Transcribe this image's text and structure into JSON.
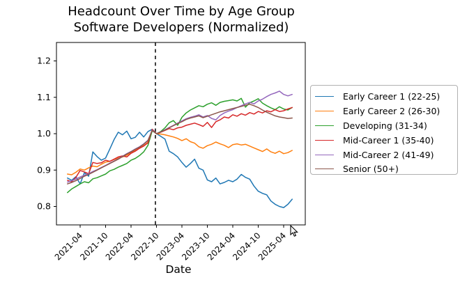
{
  "chart_data": {
    "type": "line",
    "title": "Headcount Over Time by Age Group",
    "subtitle": "Software Developers (Normalized)",
    "xlabel": "Date",
    "ylabel": "",
    "grid": false,
    "legend_position": "outside-right",
    "ylim": [
      0.75,
      1.25
    ],
    "y_tick_labels": [
      "0.8",
      "0.9",
      "1.0",
      "1.1",
      "1.2"
    ],
    "y_ticks": [
      0.8,
      0.9,
      1.0,
      1.1,
      1.2
    ],
    "x_tick_labels": [
      "2021-04",
      "2021-10",
      "2022-04",
      "2022-10",
      "2023-04",
      "2023-10",
      "2024-04",
      "2024-10",
      "2025-04"
    ],
    "x": [
      "2021-01",
      "2021-02",
      "2021-03",
      "2021-04",
      "2021-05",
      "2021-06",
      "2021-07",
      "2021-08",
      "2021-09",
      "2021-10",
      "2021-11",
      "2021-12",
      "2022-01",
      "2022-02",
      "2022-03",
      "2022-04",
      "2022-05",
      "2022-06",
      "2022-07",
      "2022-08",
      "2022-09",
      "2022-10",
      "2022-11",
      "2022-12",
      "2023-01",
      "2023-02",
      "2023-03",
      "2023-04",
      "2023-05",
      "2023-06",
      "2023-07",
      "2023-08",
      "2023-09",
      "2023-10",
      "2023-11",
      "2023-12",
      "2024-01",
      "2024-02",
      "2024-03",
      "2024-04",
      "2024-05",
      "2024-06",
      "2024-07",
      "2024-08",
      "2024-09",
      "2024-10",
      "2024-11",
      "2024-12",
      "2025-01",
      "2025-02",
      "2025-03",
      "2025-04",
      "2025-05",
      "2025-06"
    ],
    "event_line": {
      "at": "2022-09",
      "style": "dashed",
      "color": "#000000"
    },
    "series": [
      {
        "name": "Early Career 1 (22-25)",
        "color": "#1f77b4",
        "values": [
          0.878,
          0.872,
          0.882,
          0.862,
          0.893,
          0.883,
          0.95,
          0.937,
          0.927,
          0.933,
          0.958,
          0.984,
          1.004,
          0.997,
          1.007,
          0.986,
          0.99,
          1.004,
          0.991,
          1.006,
          1.012,
          1.0,
          0.993,
          0.985,
          0.952,
          0.945,
          0.936,
          0.921,
          0.908,
          0.918,
          0.93,
          0.905,
          0.9,
          0.873,
          0.868,
          0.878,
          0.862,
          0.866,
          0.872,
          0.868,
          0.875,
          0.888,
          0.88,
          0.875,
          0.856,
          0.842,
          0.836,
          0.832,
          0.815,
          0.806,
          0.8,
          0.797,
          0.806,
          0.82
        ]
      },
      {
        "name": "Early Career 2 (26-30)",
        "color": "#ff7f0e",
        "values": [
          0.889,
          0.887,
          0.894,
          0.903,
          0.9,
          0.906,
          0.911,
          0.909,
          0.916,
          0.922,
          0.924,
          0.929,
          0.933,
          0.936,
          0.941,
          0.948,
          0.954,
          0.96,
          0.967,
          0.976,
          1.01,
          1.0,
          0.999,
          0.997,
          0.994,
          0.991,
          0.987,
          0.981,
          0.986,
          0.978,
          0.974,
          0.964,
          0.96,
          0.967,
          0.971,
          0.977,
          0.972,
          0.968,
          0.962,
          0.97,
          0.972,
          0.969,
          0.971,
          0.966,
          0.961,
          0.956,
          0.951,
          0.958,
          0.95,
          0.946,
          0.952,
          0.945,
          0.948,
          0.954
        ]
      },
      {
        "name": "Developing (31-34)",
        "color": "#2ca02c",
        "values": [
          0.838,
          0.848,
          0.855,
          0.862,
          0.868,
          0.865,
          0.876,
          0.879,
          0.884,
          0.889,
          0.898,
          0.902,
          0.908,
          0.913,
          0.918,
          0.927,
          0.932,
          0.94,
          0.95,
          0.968,
          1.008,
          1.0,
          1.006,
          1.016,
          1.03,
          1.036,
          1.023,
          1.045,
          1.057,
          1.065,
          1.071,
          1.077,
          1.074,
          1.081,
          1.085,
          1.078,
          1.086,
          1.089,
          1.091,
          1.093,
          1.09,
          1.097,
          1.073,
          1.085,
          1.09,
          1.096,
          1.084,
          1.077,
          1.071,
          1.066,
          1.074,
          1.068,
          1.065,
          1.072
        ]
      },
      {
        "name": "Mid-Career 1 (35-40)",
        "color": "#d62728",
        "values": [
          0.872,
          0.868,
          0.88,
          0.899,
          0.895,
          0.89,
          0.921,
          0.918,
          0.92,
          0.927,
          0.924,
          0.93,
          0.936,
          0.939,
          0.936,
          0.946,
          0.952,
          0.96,
          0.966,
          0.975,
          1.012,
          1.0,
          1.004,
          1.009,
          1.014,
          1.011,
          1.016,
          1.018,
          1.023,
          1.026,
          1.029,
          1.025,
          1.02,
          1.031,
          1.017,
          1.033,
          1.038,
          1.046,
          1.043,
          1.052,
          1.048,
          1.055,
          1.051,
          1.058,
          1.054,
          1.061,
          1.057,
          1.063,
          1.06,
          1.066,
          1.061,
          1.063,
          1.068,
          1.072
        ]
      },
      {
        "name": "Mid-Career 2 (41-49)",
        "color": "#9467bd",
        "values": [
          0.867,
          0.871,
          0.875,
          0.881,
          0.886,
          0.89,
          0.896,
          0.901,
          0.907,
          0.913,
          0.919,
          0.925,
          0.931,
          0.938,
          0.945,
          0.951,
          0.958,
          0.964,
          0.972,
          0.982,
          1.01,
          1.0,
          1.005,
          1.011,
          1.017,
          1.023,
          1.029,
          1.035,
          1.041,
          1.045,
          1.048,
          1.052,
          1.046,
          1.05,
          1.042,
          1.038,
          1.05,
          1.057,
          1.062,
          1.066,
          1.072,
          1.077,
          1.082,
          1.086,
          1.082,
          1.09,
          1.095,
          1.102,
          1.108,
          1.112,
          1.117,
          1.108,
          1.104,
          1.108
        ]
      },
      {
        "name": "Senior (50+)",
        "color": "#8c564b",
        "values": [
          0.862,
          0.866,
          0.871,
          0.877,
          0.883,
          0.888,
          0.894,
          0.9,
          0.906,
          0.912,
          0.918,
          0.924,
          0.93,
          0.937,
          0.944,
          0.95,
          0.957,
          0.963,
          0.971,
          0.981,
          1.009,
          1.0,
          1.005,
          1.01,
          1.016,
          1.022,
          1.028,
          1.033,
          1.039,
          1.043,
          1.046,
          1.049,
          1.044,
          1.048,
          1.052,
          1.056,
          1.06,
          1.063,
          1.066,
          1.069,
          1.072,
          1.075,
          1.078,
          1.081,
          1.077,
          1.072,
          1.065,
          1.059,
          1.054,
          1.049,
          1.046,
          1.044,
          1.042,
          1.043
        ]
      }
    ]
  }
}
